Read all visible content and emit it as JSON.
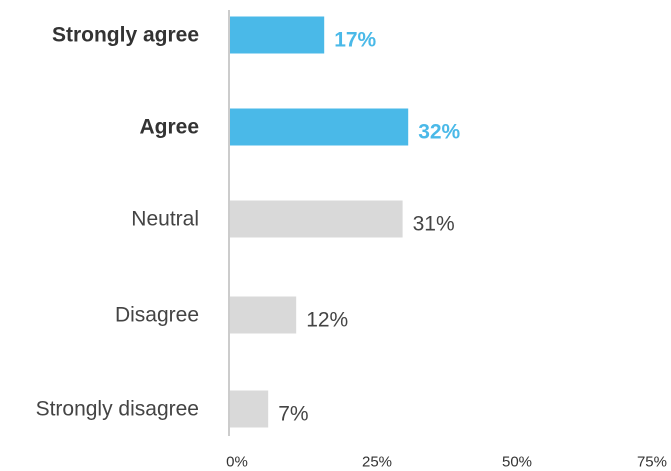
{
  "chart_data": {
    "type": "bar",
    "orientation": "horizontal",
    "title": "",
    "xlabel": "",
    "ylabel": "",
    "categories": [
      "Strongly agree",
      "Agree",
      "Neutral",
      "Disagree",
      "Strongly disagree"
    ],
    "values": [
      17,
      32,
      31,
      12,
      7
    ],
    "value_labels": [
      "17%",
      "32%",
      "31%",
      "12%",
      "7%"
    ],
    "highlighted": [
      true,
      true,
      false,
      false,
      false
    ],
    "xlim": [
      0,
      75
    ],
    "x_ticks": [
      0,
      25,
      50,
      75
    ],
    "x_tick_labels": [
      "0%",
      "25%",
      "50%",
      "75%"
    ],
    "grid": false,
    "colors": {
      "highlight_bar": "#4ab9e8",
      "highlight_label": "#4ab9e8",
      "highlight_category": "#333333",
      "normal_bar": "#d9d9d9",
      "normal_label": "#444444",
      "normal_category": "#444444",
      "axis": "#cccccc",
      "tick_label": "#333333"
    }
  }
}
